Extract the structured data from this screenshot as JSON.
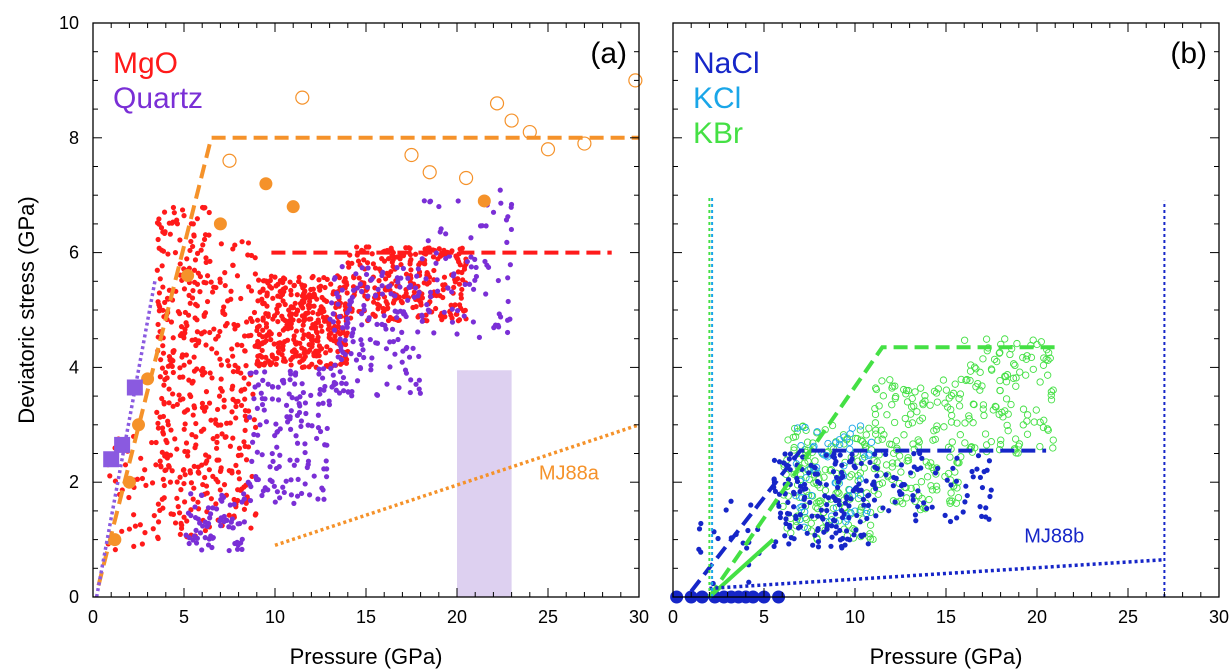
{
  "colors": {
    "mgo": "#ff1a1a",
    "quartz": "#7a2fd6",
    "orange": "#f5922a",
    "nacl": "#1626c8",
    "kcl": "#1aa6e8",
    "kbr": "#44e044",
    "quartz_fit": "#8a5ae0",
    "band": "#ddd0f0"
  },
  "chart_data": [
    {
      "type": "scatter",
      "panel_label": "(a)",
      "xlabel": "Pressure (GPa)",
      "ylabel": "Deviatoric stress (GPa)",
      "xlim": [
        0,
        30
      ],
      "ylim": [
        0,
        10
      ],
      "xticks": [
        "0",
        "5",
        "10",
        "15",
        "20",
        "25",
        "30"
      ],
      "yticks": [
        "0",
        "2",
        "4",
        "6",
        "8",
        "10"
      ],
      "legend": [
        {
          "label": "MgO",
          "color": "#ff1a1a"
        },
        {
          "label": "Quartz",
          "color": "#7a2fd6"
        }
      ],
      "annotation": "MJ88a",
      "series": [
        {
          "name": "MgO",
          "kind": "cloud",
          "color": "#ff1a1a",
          "clusters": [
            {
              "x": [
                0.8,
                3.5
              ],
              "y": [
                0.8,
                2.8
              ],
              "n": 35
            },
            {
              "x": [
                3.5,
                6.5
              ],
              "y": [
                1.0,
                6.8
              ],
              "n": 300
            },
            {
              "x": [
                6.5,
                9.0
              ],
              "y": [
                1.2,
                6.2
              ],
              "n": 160
            },
            {
              "x": [
                9.0,
                14.0
              ],
              "y": [
                4.0,
                5.6
              ],
              "n": 380
            },
            {
              "x": [
                14.0,
                20.5
              ],
              "y": [
                4.8,
                6.1
              ],
              "n": 260
            }
          ]
        },
        {
          "name": "Quartz",
          "kind": "cloud",
          "color": "#7a2fd6",
          "clusters": [
            {
              "x": [
                5.0,
                8.5
              ],
              "y": [
                0.8,
                1.8
              ],
              "n": 70
            },
            {
              "x": [
                8.5,
                13.0
              ],
              "y": [
                1.6,
                4.0
              ],
              "n": 140
            },
            {
              "x": [
                13.0,
                18.0
              ],
              "y": [
                3.5,
                5.8
              ],
              "n": 160
            },
            {
              "x": [
                18.0,
                23.0
              ],
              "y": [
                4.5,
                7.1
              ],
              "n": 80
            }
          ]
        },
        {
          "name": "orange_filled",
          "kind": "points",
          "marker": "filled-circle",
          "color": "#f5922a",
          "points": [
            [
              1.2,
              1.0
            ],
            [
              2.0,
              2.0
            ],
            [
              2.5,
              3.0
            ],
            [
              3.0,
              3.8
            ],
            [
              5.2,
              5.6
            ],
            [
              7.0,
              6.5
            ],
            [
              9.5,
              7.2
            ],
            [
              11.0,
              6.8
            ],
            [
              21.5,
              6.9
            ]
          ]
        },
        {
          "name": "orange_open",
          "kind": "points",
          "marker": "open-circle",
          "color": "#f5922a",
          "points": [
            [
              7.5,
              7.6
            ],
            [
              11.5,
              8.7
            ],
            [
              17.5,
              7.7
            ],
            [
              18.5,
              7.4
            ],
            [
              20.5,
              7.3
            ],
            [
              22.2,
              8.6
            ],
            [
              23.0,
              8.3
            ],
            [
              24.0,
              8.1
            ],
            [
              25.0,
              7.8
            ],
            [
              27.0,
              7.9
            ],
            [
              29.8,
              9.0
            ]
          ]
        },
        {
          "name": "quartz_squares",
          "kind": "points",
          "marker": "filled-square",
          "color": "#8a5ae0",
          "points": [
            [
              1.0,
              2.4
            ],
            [
              1.6,
              2.65
            ],
            [
              2.3,
              3.65
            ]
          ]
        }
      ],
      "lines": [
        {
          "color": "#f5922a",
          "style": "dashed",
          "points": [
            [
              0.3,
              0.2
            ],
            [
              6.5,
              8.0
            ],
            [
              30,
              8.0
            ]
          ]
        },
        {
          "color": "#ff1a1a",
          "style": "dashed",
          "points": [
            [
              9.8,
              6.0
            ],
            [
              28.5,
              6.0
            ]
          ]
        },
        {
          "color": "#8a5ae0",
          "style": "dotted",
          "points": [
            [
              0.2,
              0.0
            ],
            [
              3.4,
              5.5
            ]
          ]
        },
        {
          "color": "#f5922a",
          "style": "dotted",
          "points": [
            [
              10,
              0.9
            ],
            [
              30,
              3.0
            ]
          ]
        }
      ],
      "band": {
        "x": [
          20,
          23
        ],
        "y": [
          0,
          3.95
        ]
      }
    },
    {
      "type": "scatter",
      "panel_label": "(b)",
      "xlabel": "Pressure (GPa)",
      "ylabel": "",
      "xlim": [
        0,
        30
      ],
      "ylim": [
        0,
        10
      ],
      "xticks": [
        "0",
        "5",
        "10",
        "15",
        "20",
        "25",
        "30"
      ],
      "legend": [
        {
          "label": "NaCl",
          "color": "#1626c8"
        },
        {
          "label": "KCl",
          "color": "#1aa6e8"
        },
        {
          "label": "KBr",
          "color": "#44e044"
        }
      ],
      "annotation": "MJ88b",
      "series": [
        {
          "name": "KBr",
          "kind": "cloud",
          "marker": "open-circle",
          "color": "#44e044",
          "clusters": [
            {
              "x": [
                6.0,
                11.0
              ],
              "y": [
                1.0,
                3.0
              ],
              "n": 160
            },
            {
              "x": [
                11.0,
                16.0
              ],
              "y": [
                1.5,
                3.8
              ],
              "n": 160
            },
            {
              "x": [
                16.0,
                21.0
              ],
              "y": [
                2.5,
                4.5
              ],
              "n": 120
            }
          ]
        },
        {
          "name": "KCl",
          "kind": "cloud",
          "marker": "open-circle",
          "color": "#1aa6e8",
          "clusters": [
            {
              "x": [
                6.5,
                11.0
              ],
              "y": [
                1.2,
                3.0
              ],
              "n": 60
            }
          ]
        },
        {
          "name": "NaCl",
          "kind": "cloud",
          "marker": "filled-circle",
          "color": "#1626c8",
          "clusters": [
            {
              "x": [
                0.8,
                5.0
              ],
              "y": [
                0.2,
                1.7
              ],
              "n": 20
            },
            {
              "x": [
                5.5,
                11.0
              ],
              "y": [
                0.8,
                2.5
              ],
              "n": 170
            },
            {
              "x": [
                11.0,
                17.5
              ],
              "y": [
                1.3,
                2.5
              ],
              "n": 70
            }
          ]
        },
        {
          "name": "NaCl_baseline",
          "kind": "points",
          "marker": "filled-circle",
          "color": "#1626c8",
          "points": [
            [
              0.2,
              0.0
            ],
            [
              1.0,
              0.0
            ],
            [
              1.6,
              0.0
            ],
            [
              2.3,
              0.0
            ],
            [
              2.8,
              0.0
            ],
            [
              3.2,
              0.0
            ],
            [
              3.6,
              0.0
            ],
            [
              4.0,
              0.0
            ],
            [
              4.4,
              0.0
            ],
            [
              5.0,
              0.0
            ],
            [
              5.8,
              0.0
            ]
          ]
        }
      ],
      "lines": [
        {
          "color": "#44e044",
          "style": "dashed",
          "points": [
            [
              2.0,
              0.0
            ],
            [
              11.5,
              4.35
            ],
            [
              21.0,
              4.35
            ]
          ]
        },
        {
          "color": "#1626c8",
          "style": "dashed",
          "points": [
            [
              1.0,
              0.1
            ],
            [
              7.0,
              2.55
            ],
            [
              20.5,
              2.55
            ]
          ]
        },
        {
          "color": "#44e044",
          "style": "solid",
          "points": [
            [
              2.0,
              0.0
            ],
            [
              5.5,
              1.0
            ]
          ]
        },
        {
          "color": "#1626c8",
          "style": "dotted",
          "points": [
            [
              2.0,
              0.15
            ],
            [
              27.0,
              0.65
            ]
          ]
        },
        {
          "color": "#44e044",
          "style": "dotted",
          "points": [
            [
              2.0,
              0.0
            ],
            [
              2.0,
              7.0
            ]
          ]
        },
        {
          "color": "#1aa6e8",
          "style": "dotted",
          "points": [
            [
              2.15,
              0.0
            ],
            [
              2.15,
              7.0
            ]
          ]
        },
        {
          "color": "#1626c8",
          "style": "dotted",
          "points": [
            [
              27.0,
              0.0
            ],
            [
              27.0,
              6.9
            ]
          ]
        }
      ]
    }
  ]
}
